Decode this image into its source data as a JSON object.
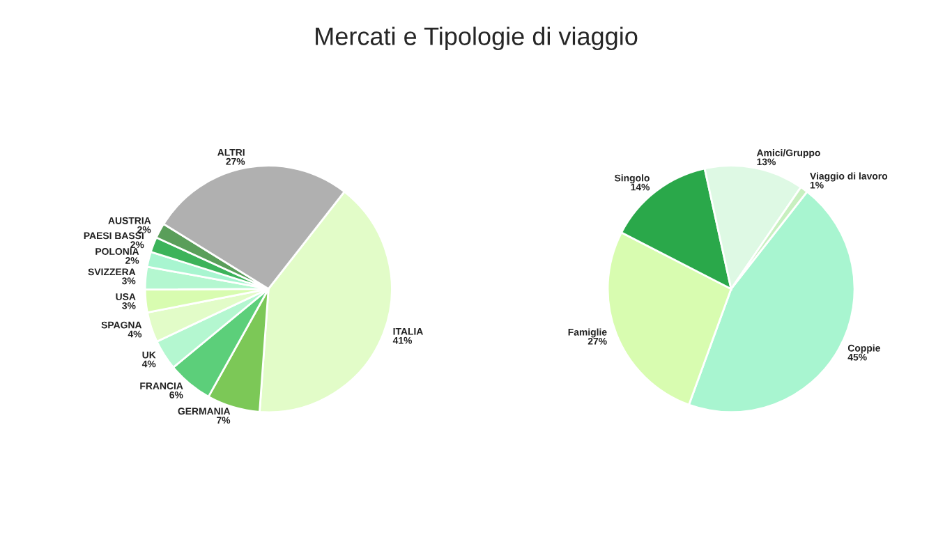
{
  "chart_data": [
    {
      "type": "pie",
      "title": "Mercati e Tipologie di viaggio",
      "categories": [
        "ITALIA",
        "GERMANIA",
        "FRANCIA",
        "UK",
        "SPAGNA",
        "USA",
        "SVIZZERA",
        "POLONIA",
        "PAESI BASSI",
        "AUSTRIA",
        "ALTRI"
      ],
      "values": [
        41,
        7,
        6,
        4,
        4,
        3,
        3,
        2,
        2,
        2,
        27
      ],
      "value_labels": [
        "41%",
        "7%",
        "6%",
        "4%",
        "4%",
        "3%",
        "3%",
        "2%",
        "2%",
        "2%",
        "27%"
      ],
      "colors": [
        "#e2fcc8",
        "#7cc857",
        "#5ccf7a",
        "#b4f7d0",
        "#e2fcc8",
        "#d8fcb0",
        "#b4f7d0",
        "#a8f5d0",
        "#3cb35a",
        "#5a9e5a",
        "#b0b0b0"
      ]
    },
    {
      "type": "pie",
      "categories": [
        "Coppie",
        "Famiglie",
        "Singolo",
        "Amici/Gruppo",
        "Viaggio di lavoro"
      ],
      "values": [
        45,
        27,
        14,
        13,
        1
      ],
      "value_labels": [
        "45%",
        "27%",
        "14%",
        "13%",
        "1%"
      ],
      "colors": [
        "#a8f5d0",
        "#d8fcb0",
        "#2aa84a",
        "#def9e4",
        "#c8f0c0"
      ]
    }
  ]
}
